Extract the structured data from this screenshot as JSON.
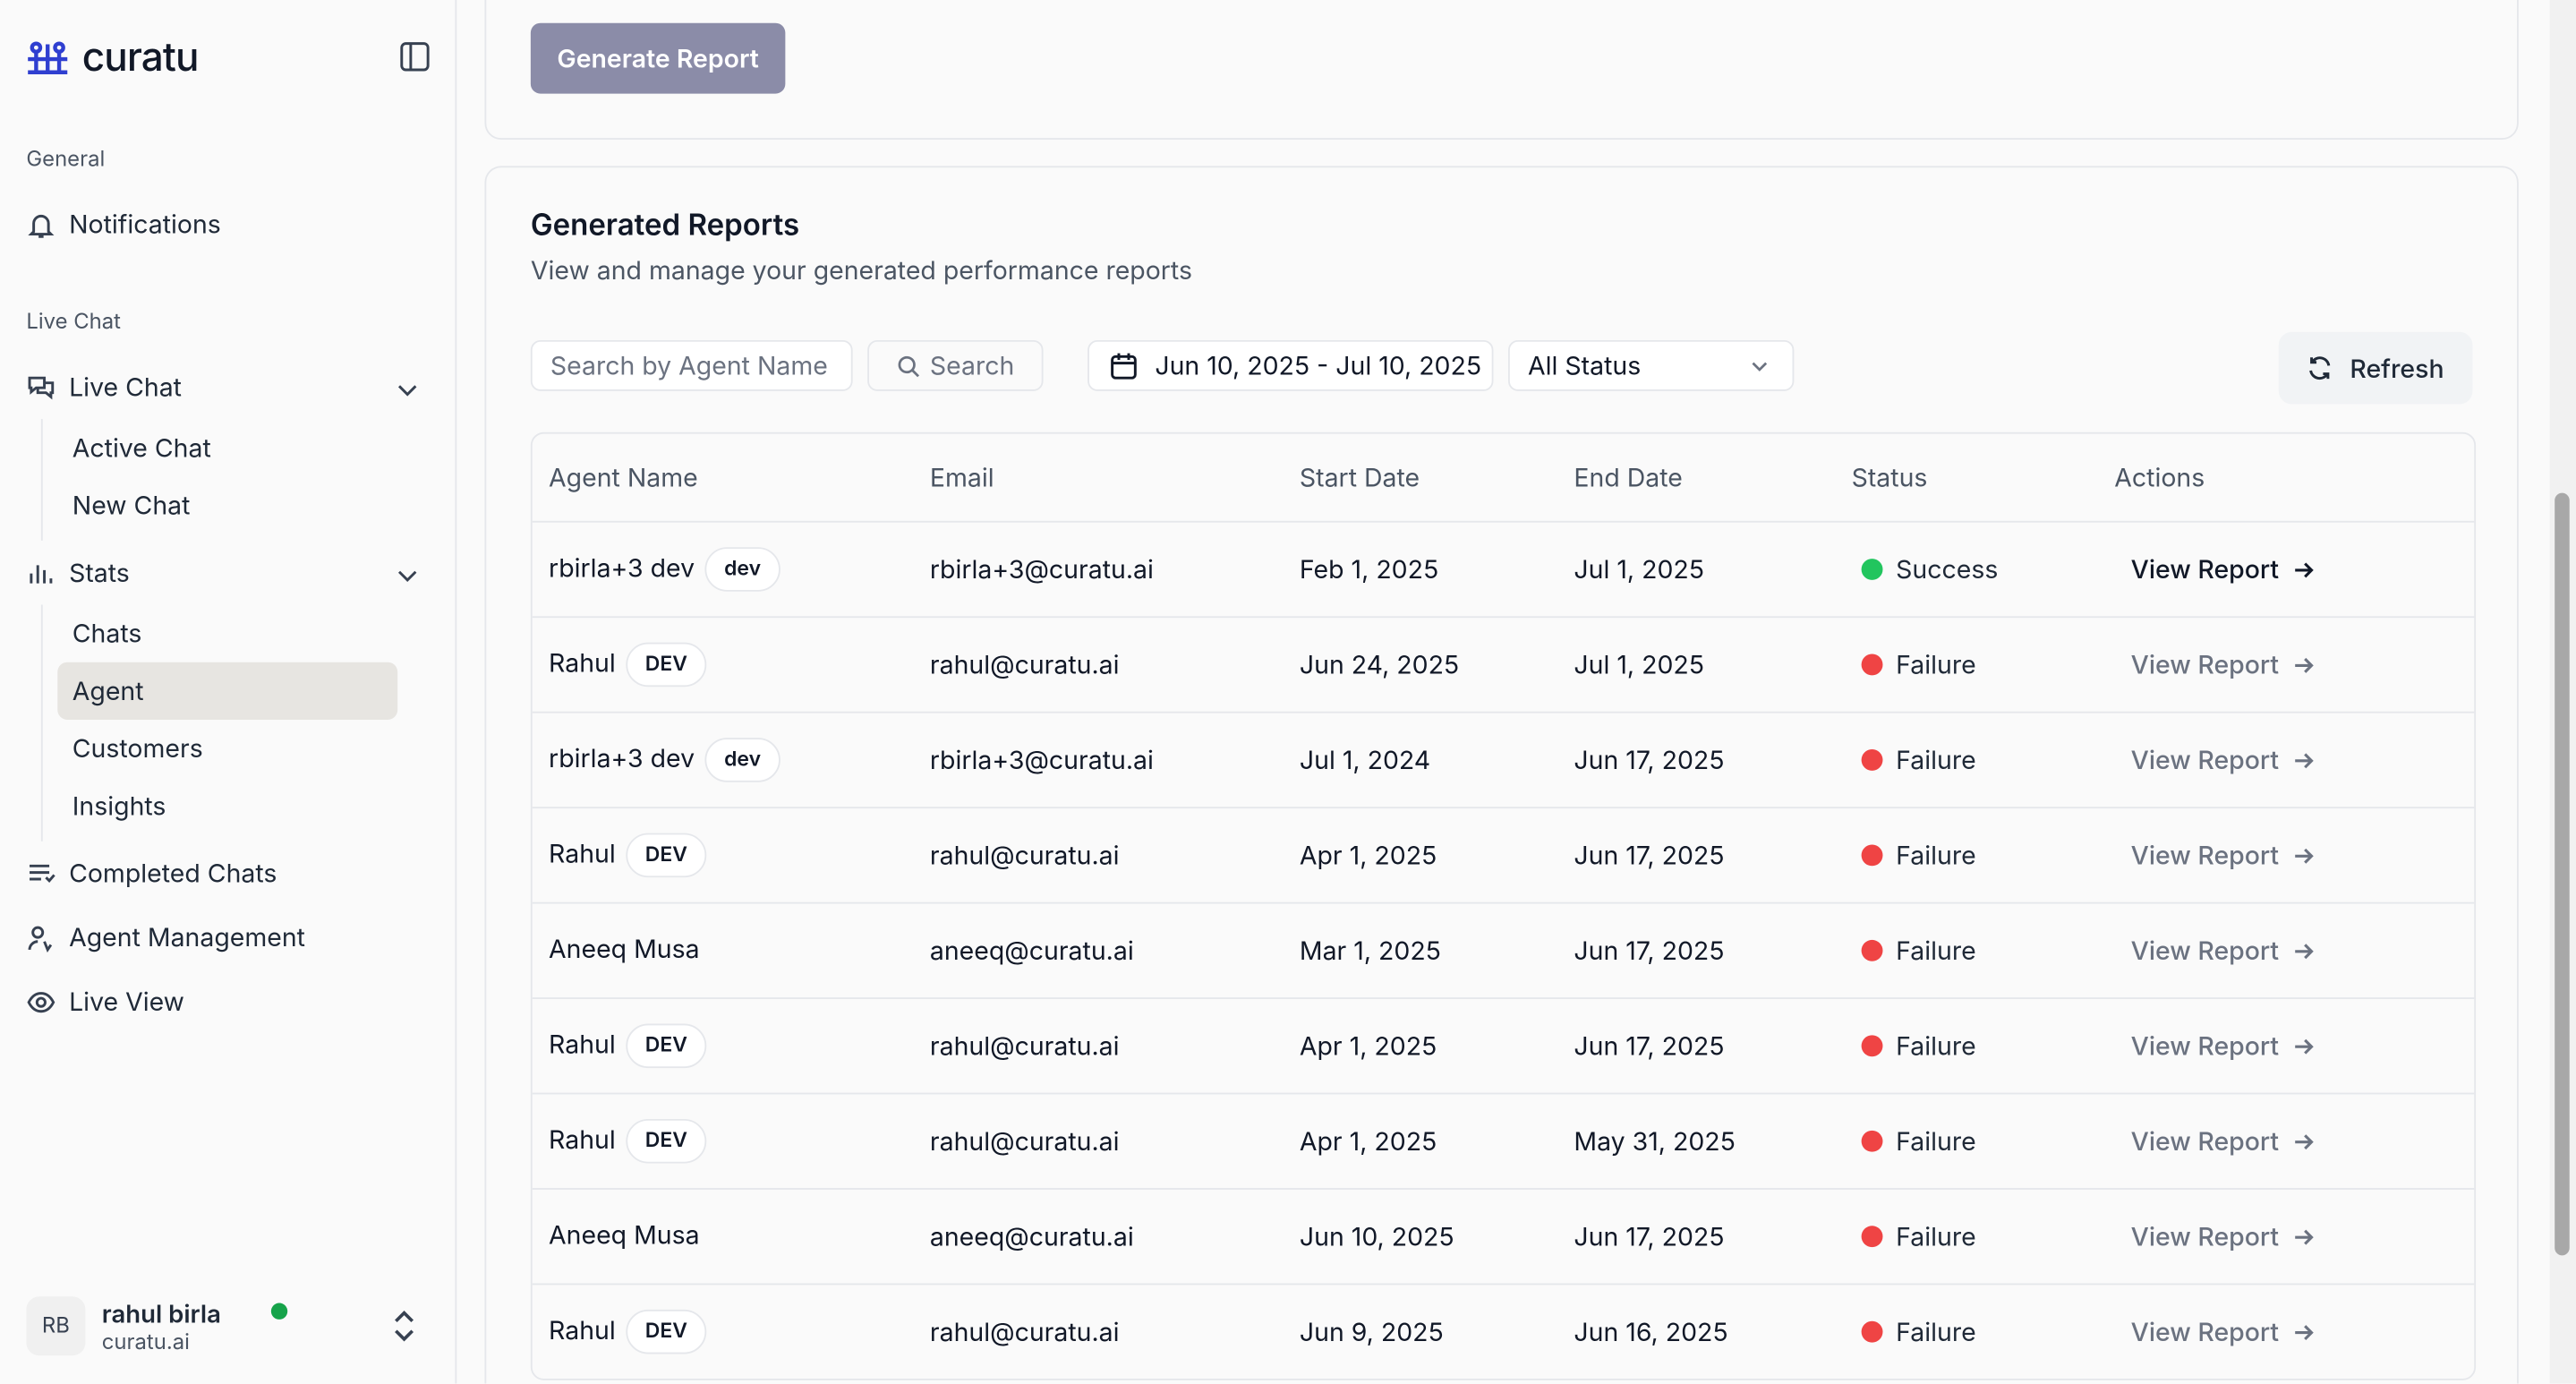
{
  "sidebar": {
    "brand": "curatu",
    "sections": [
      {
        "label": "General",
        "items": [
          {
            "label": "Notifications"
          }
        ]
      },
      {
        "label": "Live Chat",
        "items": [
          {
            "label": "Live Chat",
            "children": [
              {
                "label": "Active Chat"
              },
              {
                "label": "New Chat"
              }
            ]
          },
          {
            "label": "Stats",
            "children": [
              {
                "label": "Chats"
              },
              {
                "label": "Agent",
                "active": true
              },
              {
                "label": "Customers"
              },
              {
                "label": "Insights"
              }
            ]
          },
          {
            "label": "Completed Chats"
          },
          {
            "label": "Agent Management"
          },
          {
            "label": "Live View"
          }
        ]
      }
    ],
    "user": {
      "initials": "RB",
      "name": "rahul birla",
      "org": "curatu.ai"
    }
  },
  "generate_button": "Generate Report",
  "reports": {
    "title": "Generated Reports",
    "subtitle": "View and manage your generated performance reports",
    "search_placeholder": "Search by Agent Name",
    "search_button": "Search",
    "date_range": "Jun 10, 2025 - Jul 10, 2025",
    "status_filter": "All Status",
    "refresh": "Refresh",
    "table": {
      "headers": [
        "Agent Name",
        "Email",
        "Start Date",
        "End Date",
        "Status",
        "Actions"
      ],
      "rows": [
        {
          "agent": "rbirla+3 dev",
          "badge": "dev",
          "email": "rbirla+3@curatu.ai",
          "start": "Feb 1, 2025",
          "end": "Jul 1, 2025",
          "status": "Success",
          "status_color": "#22c55e",
          "action": "View Report",
          "action_color": "#111827"
        },
        {
          "agent": "Rahul",
          "badge": "DEV",
          "email": "rahul@curatu.ai",
          "start": "Jun 24, 2025",
          "end": "Jul 1, 2025",
          "status": "Failure",
          "status_color": "#ef4444",
          "action": "View Report",
          "action_color": "#6b7280"
        },
        {
          "agent": "rbirla+3 dev",
          "badge": "dev",
          "email": "rbirla+3@curatu.ai",
          "start": "Jul 1, 2024",
          "end": "Jun 17, 2025",
          "status": "Failure",
          "status_color": "#ef4444",
          "action": "View Report",
          "action_color": "#6b7280"
        },
        {
          "agent": "Rahul",
          "badge": "DEV",
          "email": "rahul@curatu.ai",
          "start": "Apr 1, 2025",
          "end": "Jun 17, 2025",
          "status": "Failure",
          "status_color": "#ef4444",
          "action": "View Report",
          "action_color": "#6b7280"
        },
        {
          "agent": "Aneeq Musa",
          "email": "aneeq@curatu.ai",
          "start": "Mar 1, 2025",
          "end": "Jun 17, 2025",
          "status": "Failure",
          "status_color": "#ef4444",
          "action": "View Report",
          "action_color": "#6b7280"
        },
        {
          "agent": "Rahul",
          "badge": "DEV",
          "email": "rahul@curatu.ai",
          "start": "Apr 1, 2025",
          "end": "Jun 17, 2025",
          "status": "Failure",
          "status_color": "#ef4444",
          "action": "View Report",
          "action_color": "#6b7280"
        },
        {
          "agent": "Rahul",
          "badge": "DEV",
          "email": "rahul@curatu.ai",
          "start": "Apr 1, 2025",
          "end": "May 31, 2025",
          "status": "Failure",
          "status_color": "#ef4444",
          "action": "View Report",
          "action_color": "#6b7280"
        },
        {
          "agent": "Aneeq Musa",
          "email": "aneeq@curatu.ai",
          "start": "Jun 10, 2025",
          "end": "Jun 17, 2025",
          "status": "Failure",
          "status_color": "#ef4444",
          "action": "View Report",
          "action_color": "#6b7280"
        },
        {
          "agent": "Rahul",
          "badge": "DEV",
          "email": "rahul@curatu.ai",
          "start": "Jun 9, 2025",
          "end": "Jun 16, 2025",
          "status": "Failure",
          "status_color": "#ef4444",
          "action": "View Report",
          "action_color": "#6b7280"
        }
      ]
    }
  }
}
